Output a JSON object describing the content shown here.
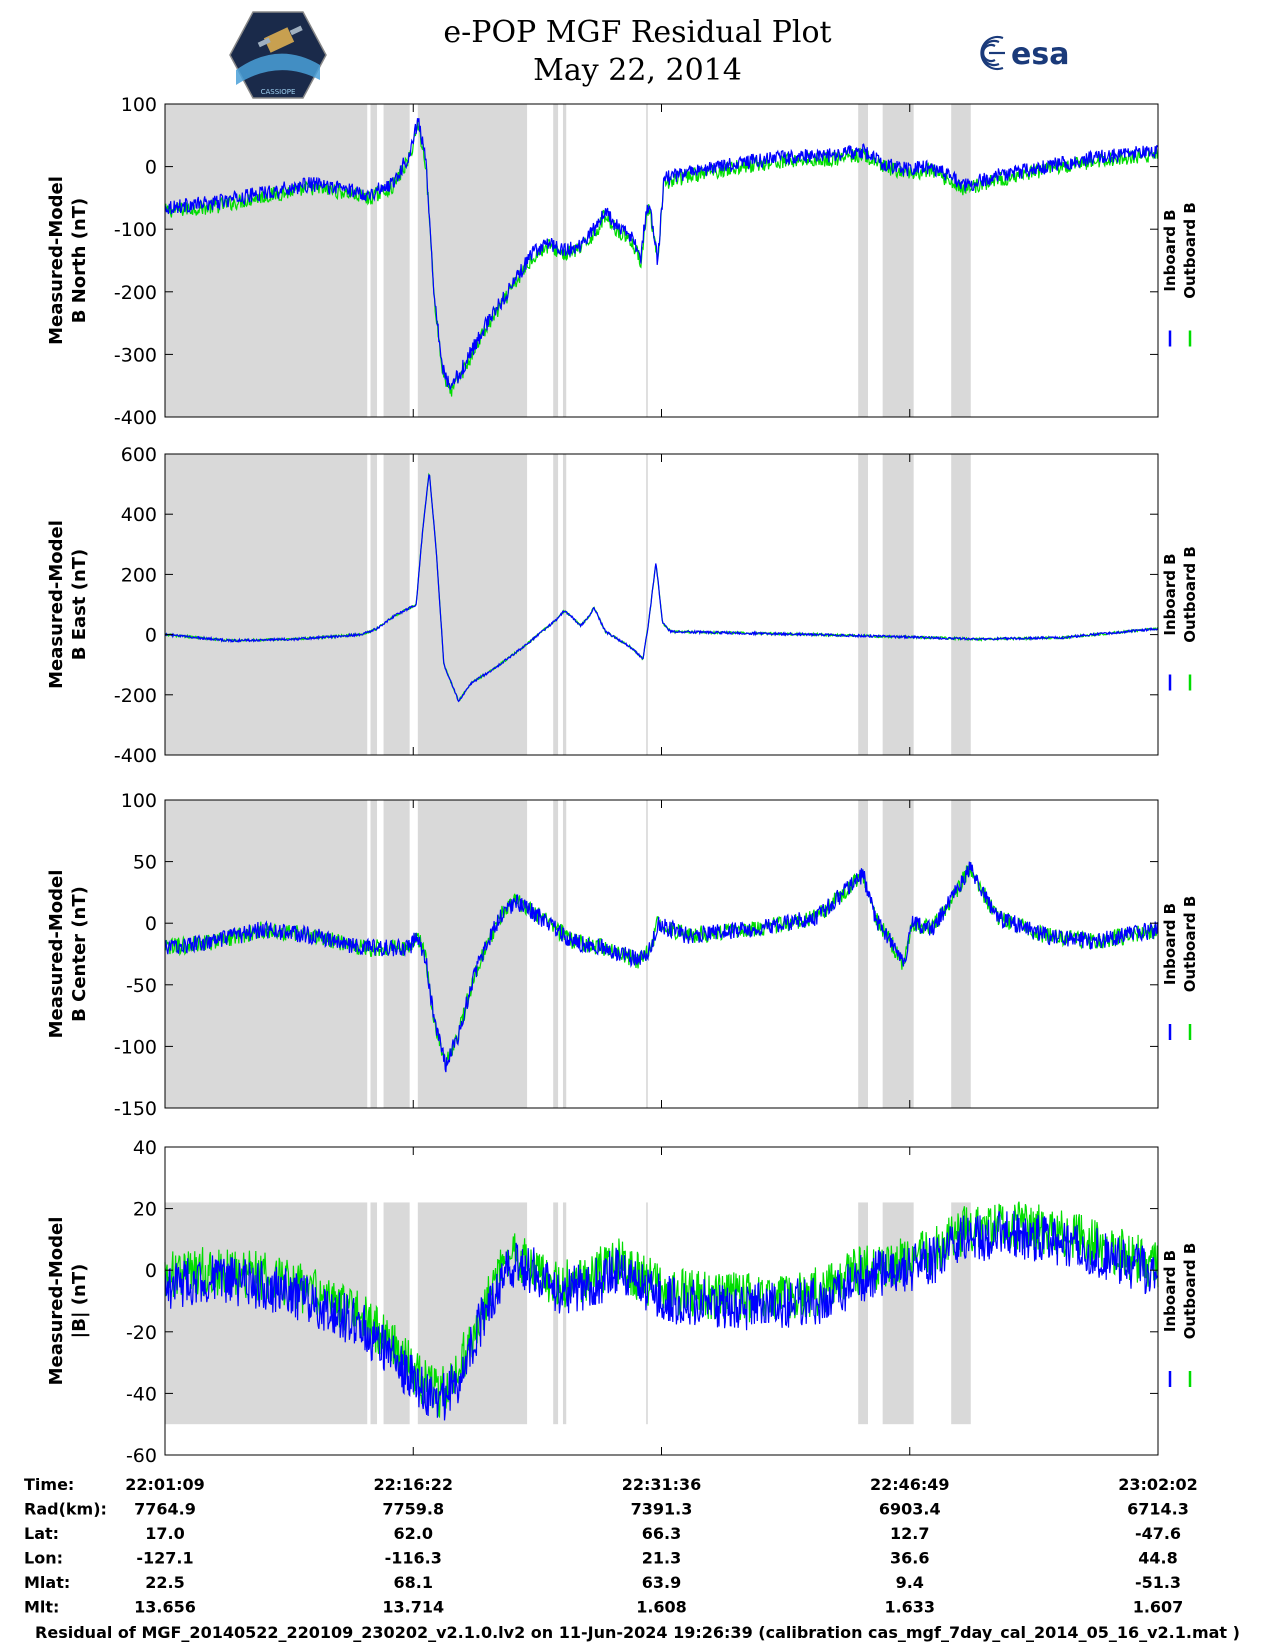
{
  "header": {
    "title_line1": "e-POP MGF Residual Plot",
    "title_line2": "May 22, 2014",
    "logo_right_text": "esa",
    "logo_left_text": "CASSIOPE"
  },
  "colors": {
    "inboard": "#0000ff",
    "outboard": "#00dd00",
    "bad_data_shading": "#d9d9d9"
  },
  "time_axis": {
    "start": "22:01:09",
    "end": "23:02:02",
    "tick_times": [
      "22:01:09",
      "22:16:22",
      "22:31:36",
      "22:46:49",
      "23:02:02"
    ]
  },
  "shaded_intervals_min_from_start": [
    [
      0.0,
      12.4
    ],
    [
      12.6,
      13.0
    ],
    [
      13.4,
      15.0
    ],
    [
      15.5,
      22.2
    ],
    [
      23.8,
      24.1
    ],
    [
      24.4,
      24.6
    ],
    [
      29.5,
      29.6
    ],
    [
      42.5,
      43.1
    ],
    [
      44.0,
      45.9
    ],
    [
      48.2,
      49.4
    ]
  ],
  "chart_data": [
    {
      "type": "line",
      "ylabel": [
        "Measured-Model",
        "B North (nT)"
      ],
      "ylim": [
        -400,
        100
      ],
      "yticks": [
        100,
        0,
        -100,
        -200,
        -300,
        -400
      ],
      "legend": [
        "Inboard B",
        "Outboard B"
      ],
      "legend_placement": "right",
      "shade_ylim": [
        -400,
        100
      ],
      "noise": 12,
      "outboard_offset": -6,
      "series_min_from_start_and_nT": [
        [
          0,
          -65
        ],
        [
          3,
          -58
        ],
        [
          6,
          -42
        ],
        [
          9,
          -28
        ],
        [
          11,
          -35
        ],
        [
          12.5,
          -45
        ],
        [
          14,
          -25
        ],
        [
          15,
          20
        ],
        [
          15.5,
          75
        ],
        [
          16,
          10
        ],
        [
          16.5,
          -200
        ],
        [
          17,
          -320
        ],
        [
          17.5,
          -355
        ],
        [
          18.5,
          -310
        ],
        [
          19.5,
          -260
        ],
        [
          20.5,
          -220
        ],
        [
          21.5,
          -180
        ],
        [
          22.5,
          -140
        ],
        [
          23.5,
          -120
        ],
        [
          24.5,
          -135
        ],
        [
          25.5,
          -125
        ],
        [
          26,
          -110
        ],
        [
          26.5,
          -95
        ],
        [
          27,
          -70
        ],
        [
          27.5,
          -90
        ],
        [
          28.5,
          -110
        ],
        [
          29.2,
          -145
        ],
        [
          29.4,
          -90
        ],
        [
          29.7,
          -60
        ],
        [
          30.2,
          -150
        ],
        [
          30.6,
          -20
        ],
        [
          32,
          -10
        ],
        [
          35,
          5
        ],
        [
          38,
          15
        ],
        [
          41,
          18
        ],
        [
          42.8,
          25
        ],
        [
          44,
          5
        ],
        [
          45.5,
          -5
        ],
        [
          47,
          0
        ],
        [
          48,
          -15
        ],
        [
          49,
          -30
        ],
        [
          51,
          -15
        ],
        [
          54,
          0
        ],
        [
          57,
          15
        ],
        [
          60.9,
          25
        ]
      ]
    },
    {
      "type": "line",
      "ylabel": [
        "Measured-Model",
        "B East (nT)"
      ],
      "ylim": [
        -400,
        600
      ],
      "yticks": [
        600,
        400,
        200,
        0,
        -200,
        -400
      ],
      "legend": [
        "Inboard B",
        "Outboard B"
      ],
      "legend_placement": "right",
      "shade_ylim": [
        -400,
        600
      ],
      "noise": 4,
      "outboard_offset": 0,
      "series_min_from_start_and_nT": [
        [
          0,
          0
        ],
        [
          4,
          -20
        ],
        [
          8,
          -15
        ],
        [
          12,
          0
        ],
        [
          13,
          20
        ],
        [
          14,
          60
        ],
        [
          15.4,
          100
        ],
        [
          15.8,
          350
        ],
        [
          16.2,
          540
        ],
        [
          16.6,
          300
        ],
        [
          17.1,
          -100
        ],
        [
          18,
          -220
        ],
        [
          18.8,
          -160
        ],
        [
          20,
          -120
        ],
        [
          22,
          -40
        ],
        [
          24,
          50
        ],
        [
          24.5,
          80
        ],
        [
          25.5,
          30
        ],
        [
          26,
          60
        ],
        [
          26.3,
          90
        ],
        [
          27,
          10
        ],
        [
          28.5,
          -40
        ],
        [
          29.3,
          -80
        ],
        [
          29.6,
          20
        ],
        [
          30.1,
          240
        ],
        [
          30.5,
          40
        ],
        [
          31,
          10
        ],
        [
          40,
          0
        ],
        [
          50,
          -15
        ],
        [
          55,
          -10
        ],
        [
          60.9,
          20
        ]
      ]
    },
    {
      "type": "line",
      "ylabel": [
        "Measured-Model",
        "B Center (nT)"
      ],
      "ylim": [
        -150,
        100
      ],
      "yticks": [
        100,
        50,
        0,
        -50,
        -100,
        -150
      ],
      "legend": [
        "Inboard B",
        "Outboard B"
      ],
      "legend_placement": "right",
      "shade_ylim": [
        -150,
        100
      ],
      "noise": 7,
      "outboard_offset": 0,
      "series_min_from_start_and_nT": [
        [
          0,
          -20
        ],
        [
          3,
          -15
        ],
        [
          6,
          -5
        ],
        [
          9,
          -10
        ],
        [
          12,
          -20
        ],
        [
          15,
          -20
        ],
        [
          15.5,
          -10
        ],
        [
          16,
          -30
        ],
        [
          16.5,
          -80
        ],
        [
          17.2,
          -115
        ],
        [
          18,
          -90
        ],
        [
          19,
          -40
        ],
        [
          20.5,
          5
        ],
        [
          21.5,
          18
        ],
        [
          23,
          5
        ],
        [
          25,
          -15
        ],
        [
          27,
          -20
        ],
        [
          29,
          -30
        ],
        [
          29.8,
          -20
        ],
        [
          30.2,
          0
        ],
        [
          32,
          -10
        ],
        [
          36,
          -5
        ],
        [
          40,
          5
        ],
        [
          42.8,
          40
        ],
        [
          43.5,
          5
        ],
        [
          44.5,
          -15
        ],
        [
          45.3,
          -35
        ],
        [
          45.8,
          0
        ],
        [
          47,
          -5
        ],
        [
          48.5,
          25
        ],
        [
          49.3,
          45
        ],
        [
          51,
          5
        ],
        [
          54,
          -10
        ],
        [
          57,
          -15
        ],
        [
          60.9,
          -5
        ]
      ]
    },
    {
      "type": "line",
      "ylabel": [
        "Measured-Model",
        "|B| (nT)"
      ],
      "ylim": [
        -60,
        40
      ],
      "yticks": [
        40,
        20,
        0,
        -20,
        -40,
        -60
      ],
      "legend": [
        "Inboard B",
        "Outboard B"
      ],
      "legend_placement": "right",
      "shade_ylim": [
        -50,
        22
      ],
      "noise": 8,
      "outboard_offset": 3,
      "series_min_from_start_and_nT": [
        [
          0,
          -5
        ],
        [
          3,
          -3
        ],
        [
          6,
          -5
        ],
        [
          9,
          -10
        ],
        [
          12,
          -18
        ],
        [
          14,
          -28
        ],
        [
          16,
          -40
        ],
        [
          16.8,
          -43
        ],
        [
          18,
          -35
        ],
        [
          19.5,
          -15
        ],
        [
          21,
          2
        ],
        [
          22.5,
          0
        ],
        [
          24,
          -8
        ],
        [
          26,
          -5
        ],
        [
          27.8,
          0
        ],
        [
          29,
          -5
        ],
        [
          31,
          -10
        ],
        [
          36,
          -12
        ],
        [
          40,
          -10
        ],
        [
          43,
          -2
        ],
        [
          45,
          0
        ],
        [
          47,
          3
        ],
        [
          49,
          10
        ],
        [
          52,
          12
        ],
        [
          56,
          8
        ],
        [
          60.9,
          -2
        ]
      ]
    }
  ],
  "info_table": {
    "row_labels": [
      "Time:",
      "Rad(km):",
      "Lat:",
      "Lon:",
      "Mlat:",
      "Mlt:"
    ],
    "columns": [
      [
        "22:01:09",
        "7764.9",
        "17.0",
        "-127.1",
        "22.5",
        "13.656"
      ],
      [
        "22:16:22",
        "7759.8",
        "62.0",
        "-116.3",
        "68.1",
        "13.714"
      ],
      [
        "22:31:36",
        "7391.3",
        "66.3",
        "21.3",
        "63.9",
        "1.608"
      ],
      [
        "22:46:49",
        "6903.4",
        "12.7",
        "36.6",
        "9.4",
        "1.633"
      ],
      [
        "23:02:02",
        "6714.3",
        "-47.6",
        "44.8",
        "-51.3",
        "1.607"
      ]
    ]
  },
  "footer": {
    "text": "Residual of MGF_20140522_220109_230202_v2.1.0.lv2 on 11-Jun-2024 19:26:39 (calibration cas_mgf_7day_cal_2014_05_16_v2.1.mat )"
  }
}
